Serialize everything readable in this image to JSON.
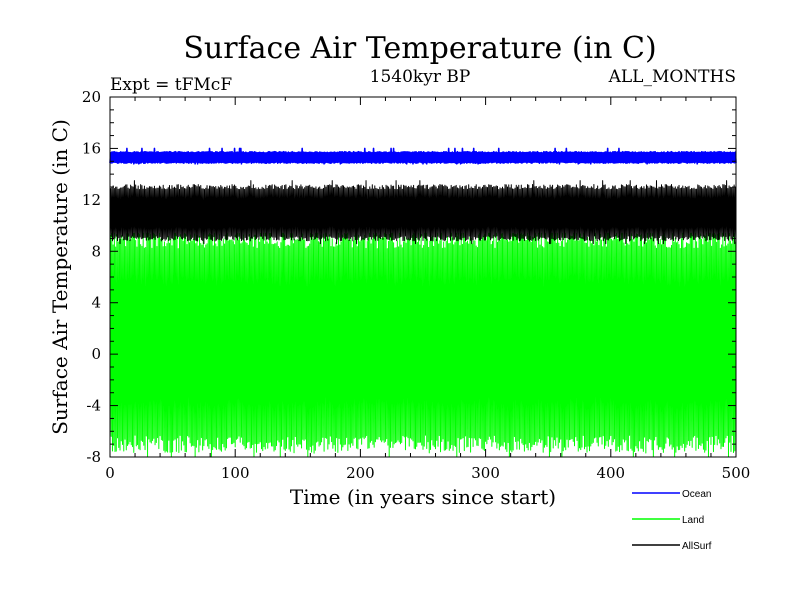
{
  "chart_data": {
    "type": "line",
    "title": "Surface Air Temperature (in C)",
    "subtitle_left": "Expt = tFMcF",
    "subtitle_center": "1540kyr BP",
    "subtitle_right": "ALL_MONTHS",
    "xlabel": "Time (in years since start)",
    "ylabel": "Surface Air Temperature (in C)",
    "xlim": [
      0,
      500
    ],
    "ylim": [
      -8,
      20
    ],
    "x_ticks": [
      0,
      100,
      200,
      300,
      400,
      500
    ],
    "y_ticks": [
      -8,
      -4,
      0,
      4,
      8,
      12,
      16,
      20
    ],
    "grid": false,
    "legend_position": "bottom-right",
    "series": [
      {
        "name": "Ocean",
        "color": "#0000ff",
        "low": 14.9,
        "high": 15.7,
        "min": 14.8,
        "max": 16.0
      },
      {
        "name": "AllSurf",
        "color": "#000000",
        "low": 9.0,
        "high": 13.0,
        "min": 8.6,
        "max": 13.5
      },
      {
        "name": "Land",
        "color": "#00ff00",
        "low": -7.0,
        "high": 8.9,
        "min": -8.0,
        "max": 9.4
      }
    ]
  }
}
